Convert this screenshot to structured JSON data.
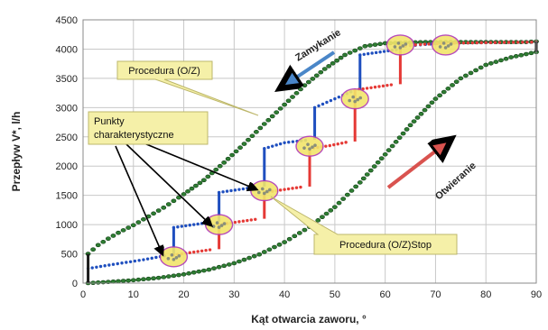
{
  "chart_data": {
    "type": "scatter",
    "xlabel": "Kąt otwarcia zaworu, °",
    "ylabel": "Przepływ V*, l/h",
    "xlim": [
      0,
      90
    ],
    "ylim": [
      0,
      4500
    ],
    "xticks": [
      0,
      10,
      20,
      30,
      40,
      50,
      60,
      70,
      80,
      90
    ],
    "yticks": [
      0,
      500,
      1000,
      1500,
      2000,
      2500,
      3000,
      3500,
      4000,
      4500
    ],
    "grid": true,
    "series": [
      {
        "color": "#2e7d32",
        "x": [
          1,
          3,
          5,
          7,
          10,
          13,
          16,
          20,
          24,
          28,
          32,
          36,
          40,
          44,
          48,
          52,
          56,
          60,
          64,
          68,
          72,
          76,
          80,
          84,
          88,
          90
        ],
        "y": [
          500,
          650,
          760,
          860,
          990,
          1140,
          1290,
          1520,
          1760,
          2060,
          2380,
          2720,
          3050,
          3380,
          3660,
          3900,
          4050,
          4100,
          4110,
          4120,
          4120,
          4120,
          4120,
          4120,
          4120,
          4130
        ]
      },
      {
        "color": "#2e7d32",
        "x": [
          1,
          5,
          10,
          15,
          20,
          25,
          30,
          35,
          40,
          45,
          50,
          55,
          60,
          65,
          70,
          75,
          80,
          85,
          90
        ],
        "y": [
          0,
          20,
          50,
          90,
          150,
          230,
          340,
          490,
          700,
          960,
          1300,
          1720,
          2200,
          2700,
          3150,
          3500,
          3730,
          3860,
          3950
        ]
      },
      {
        "color": "#1f4fbf",
        "x": [
          1,
          6,
          12,
          17,
          18,
          22,
          26,
          27,
          31,
          35,
          36,
          40,
          45,
          46,
          50,
          54,
          55,
          59,
          63,
          64,
          68,
          72,
          80,
          90
        ],
        "y": [
          250,
          320,
          400,
          480,
          950,
          1000,
          1050,
          1550,
          1600,
          1650,
          2300,
          2400,
          2450,
          3000,
          3150,
          3300,
          3900,
          3950,
          4000,
          4050,
          4080,
          4100,
          4110,
          4120
        ]
      },
      {
        "color": "#e53935",
        "x": [
          18,
          22,
          26,
          27,
          31,
          35,
          36,
          40,
          44,
          45,
          49,
          53,
          54,
          58,
          62,
          63,
          67,
          72,
          80,
          90
        ],
        "y": [
          480,
          530,
          580,
          1000,
          1050,
          1100,
          1550,
          1600,
          1650,
          2300,
          2350,
          2420,
          3300,
          3350,
          3400,
          4050,
          4080,
          4100,
          4110,
          4120
        ]
      }
    ],
    "highlight_points": [
      {
        "x": 18,
        "y": 450
      },
      {
        "x": 27,
        "y": 1000
      },
      {
        "x": 36,
        "y": 1580
      },
      {
        "x": 45,
        "y": 2340
      },
      {
        "x": 54,
        "y": 3150
      },
      {
        "x": 63,
        "y": 4070
      },
      {
        "x": 72,
        "y": 4070
      }
    ],
    "annotations": {
      "procedura_oz": "Procedura (O/Z)",
      "punkty_line1": "Punkty",
      "punkty_line2": "charakterystyczne",
      "procedura_stop": "Procedura (O/Z)Stop",
      "zamykanie": "Zamykanie",
      "otwieranie": "Otwieranie"
    }
  }
}
